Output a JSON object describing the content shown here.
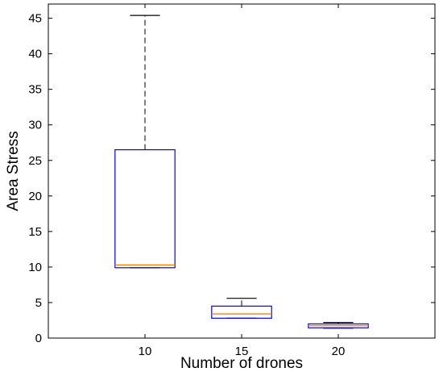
{
  "chart_data": {
    "type": "box",
    "title": "",
    "xlabel": "Number of drones",
    "ylabel": "Area Stress",
    "categories": [
      "10",
      "15",
      "20"
    ],
    "ylim": [
      0,
      47
    ],
    "yticks": [
      0,
      5,
      10,
      15,
      20,
      25,
      30,
      35,
      40,
      45
    ],
    "boxes": [
      {
        "category": "10",
        "min": 9.9,
        "q1": 9.9,
        "median": 10.3,
        "q3": 26.5,
        "max": 45.4
      },
      {
        "category": "15",
        "min": 2.8,
        "q1": 2.8,
        "median": 3.4,
        "q3": 4.5,
        "max": 5.6
      },
      {
        "category": "20",
        "min": 1.4,
        "q1": 1.45,
        "median": 1.75,
        "q3": 2.0,
        "max": 2.2
      }
    ],
    "grid": false,
    "colors": {
      "box": "#0000ff",
      "median": "#ff8000",
      "whisker": "#000000"
    }
  }
}
